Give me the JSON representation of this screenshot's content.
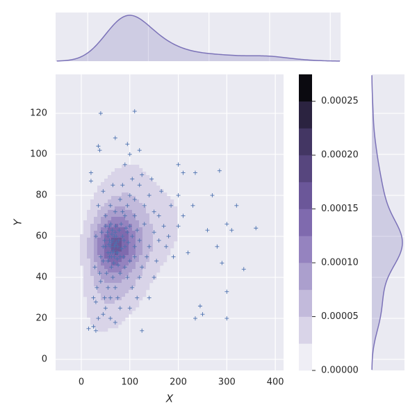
{
  "chart_data": {
    "type": "jointplot-kde",
    "xlabel": "X",
    "ylabel": "Y",
    "xlim": [
      -53,
      417
    ],
    "ylim": [
      -5.4,
      139
    ],
    "xticks": [
      0,
      100,
      200,
      300,
      400
    ],
    "yticks": [
      0,
      20,
      40,
      60,
      80,
      100,
      120
    ],
    "marker_color": "#4c72b0",
    "marginal_color": "#7b72b8",
    "levels": [
      0,
      2.5e-05,
      5e-05,
      7.5e-05,
      0.0001,
      0.000125,
      0.00015,
      0.000175,
      0.0002,
      0.000225,
      0.00025,
      0.000275
    ],
    "level_colors": [
      "#efeef5",
      "#d9d4e8",
      "#c2badb",
      "#ab9fcd",
      "#9583bf",
      "#7f6aae",
      "#6b5799",
      "#57467e",
      "#433663",
      "#2b2340",
      "#0b0a10"
    ],
    "colorbar_ticks": [
      {
        "value": 0,
        "label": "0.00000"
      },
      {
        "value": 5e-05,
        "label": "0.00005"
      },
      {
        "value": 0.0001,
        "label": "0.00010"
      },
      {
        "value": 0.00015,
        "label": "0.00015"
      },
      {
        "value": 0.0002,
        "label": "0.00020"
      },
      {
        "value": 0.00025,
        "label": "0.00025"
      }
    ],
    "x": [
      40,
      110,
      38,
      35,
      70,
      95,
      100,
      120,
      90,
      200,
      210,
      235,
      285,
      270,
      320,
      360,
      300,
      310,
      290,
      335,
      300,
      300,
      245,
      250,
      235,
      20,
      20,
      25,
      15,
      30,
      125,
      140,
      150,
      180,
      160,
      200,
      230,
      260,
      280,
      220,
      50,
      55,
      60,
      65,
      70,
      75,
      80,
      45,
      58,
      62,
      68,
      72,
      78,
      85,
      90,
      95,
      52,
      48,
      57,
      63,
      66,
      74,
      82,
      88,
      100,
      105,
      110,
      115,
      120,
      130,
      40,
      42,
      55,
      60,
      50,
      45,
      35,
      30,
      40,
      65,
      70,
      80,
      90,
      100,
      110,
      125,
      140,
      150,
      160,
      170,
      130,
      140,
      120,
      100,
      80,
      60,
      50,
      70,
      90,
      110,
      150,
      175,
      190,
      200,
      210,
      185,
      165,
      145,
      125,
      105,
      85,
      65,
      45,
      35,
      30,
      28,
      32,
      25,
      55,
      62,
      68,
      73,
      58,
      77,
      83,
      54,
      61,
      67,
      71,
      76,
      87,
      92,
      97,
      45,
      50,
      85,
      95,
      105,
      115,
      75,
      60,
      80,
      100,
      70,
      48,
      38,
      120,
      135,
      155,
      95,
      110,
      60,
      65,
      70,
      62,
      58,
      72,
      55,
      68,
      64,
      75
    ],
    "y": [
      120,
      121,
      102,
      104,
      108,
      105,
      100,
      102,
      95,
      95,
      91,
      91,
      92,
      80,
      75,
      64,
      66,
      63,
      47,
      44,
      33,
      20,
      26,
      22,
      20,
      91,
      87,
      16,
      15,
      14,
      14,
      30,
      40,
      60,
      70,
      80,
      75,
      63,
      55,
      52,
      55,
      60,
      52,
      58,
      62,
      55,
      50,
      48,
      65,
      45,
      50,
      57,
      63,
      60,
      55,
      62,
      42,
      58,
      56,
      61,
      53,
      49,
      66,
      58,
      65,
      60,
      70,
      63,
      58,
      66,
      50,
      62,
      35,
      30,
      25,
      22,
      20,
      28,
      38,
      40,
      35,
      42,
      45,
      48,
      50,
      45,
      55,
      62,
      58,
      65,
      75,
      80,
      85,
      80,
      78,
      75,
      70,
      72,
      70,
      78,
      72,
      55,
      50,
      65,
      70,
      75,
      82,
      88,
      90,
      88,
      85,
      85,
      82,
      75,
      60,
      45,
      35,
      30,
      48,
      57,
      60,
      52,
      50,
      58,
      54,
      62,
      66,
      47,
      65,
      46,
      50,
      64,
      57,
      55,
      65,
      72,
      40,
      35,
      30,
      30,
      20,
      25,
      25,
      18,
      30,
      42,
      40,
      50,
      48,
      75,
      55,
      55,
      52,
      56,
      50,
      58,
      60,
      52,
      55,
      63,
      52
    ]
  }
}
